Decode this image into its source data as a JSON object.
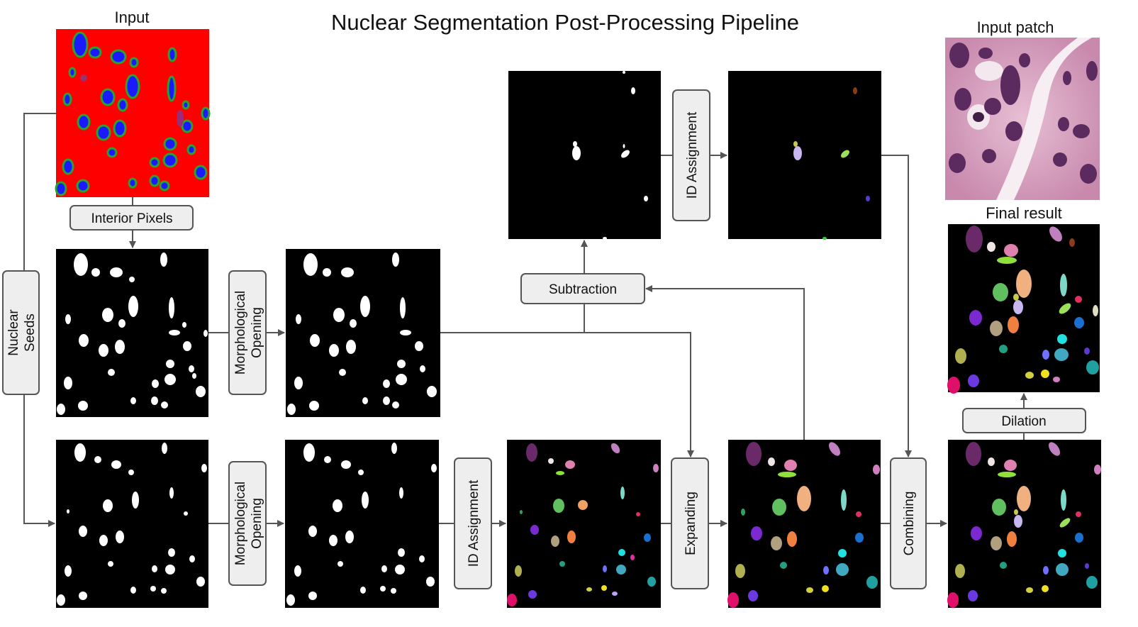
{
  "title": "Nuclear Segmentation Post-Processing Pipeline",
  "captions": {
    "input": "Input",
    "input_patch": "Input patch",
    "final_result": "Final result"
  },
  "steps": {
    "interior_pixels": "Interior Pixels",
    "nuclear_seeds_1": "Nuclear",
    "nuclear_seeds_2": "Seeds",
    "morph_open_1": "Morphological",
    "morph_open_2": "Opening",
    "subtraction": "Subtraction",
    "id_assignment": "ID Assignment",
    "expanding": "Expanding",
    "combining": "Combining",
    "dilation": "Dilation"
  },
  "colors": {
    "input_background": "#ff0000",
    "nucleus_fill": "#1a1aff",
    "nucleus_border": "#2ea02e",
    "mask_background": "#000000",
    "mask_foreground": "#ffffff",
    "box_fill": "#eeeeee",
    "arrow": "#555555",
    "tissue_base": "#d9a3c4",
    "tissue_dark": "#5b2a5e"
  },
  "icons": {
    "arrow": "arrow-head-icon"
  }
}
